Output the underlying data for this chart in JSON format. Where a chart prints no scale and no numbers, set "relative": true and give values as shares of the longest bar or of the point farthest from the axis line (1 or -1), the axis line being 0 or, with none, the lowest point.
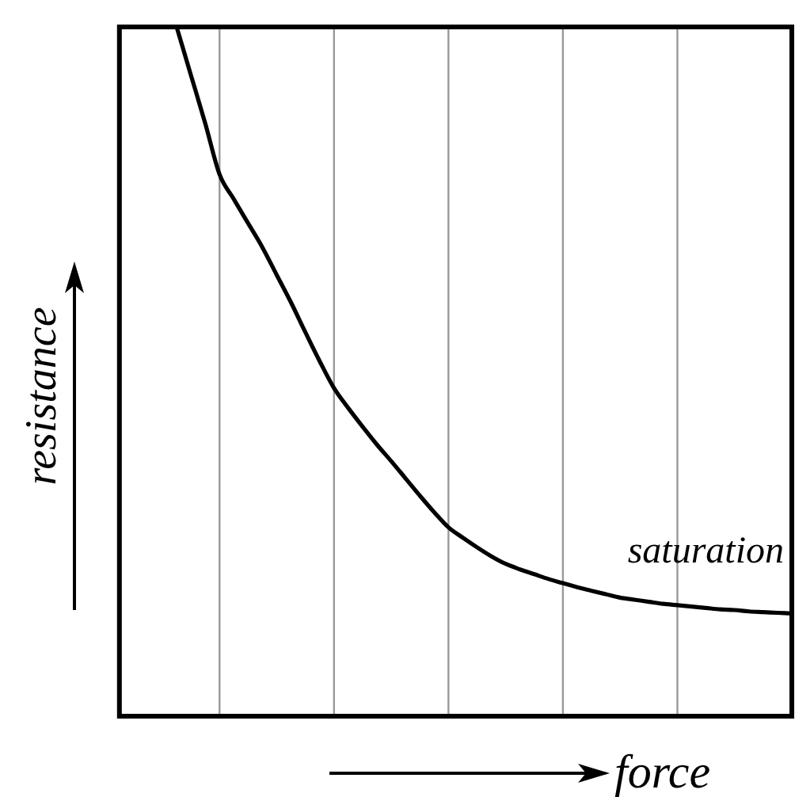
{
  "chart_data": {
    "type": "line",
    "xlabel": "force",
    "ylabel": "resistance",
    "relative": true,
    "grid": "x",
    "annotations": [
      "saturation"
    ],
    "categories": [
      null,
      null,
      null,
      null,
      null,
      null,
      null,
      null,
      null,
      null,
      null,
      null,
      null,
      null,
      null,
      null,
      null,
      null,
      null,
      null,
      null,
      null,
      null,
      null,
      null,
      null,
      null,
      null,
      null,
      null,
      null,
      null,
      null,
      null,
      null,
      null,
      null,
      null,
      null,
      null,
      null,
      null,
      null,
      null,
      null
    ],
    "series": [
      {
        "color": "#000000",
        "values": [
          null,
          1.0,
          0.93,
          0.86,
          0.786,
          0.75,
          0.715,
          0.68,
          0.64,
          0.6,
          0.557,
          0.515,
          0.476,
          0.447,
          0.42,
          0.394,
          0.37,
          0.345,
          0.32,
          0.296,
          0.274,
          0.259,
          0.245,
          0.232,
          0.221,
          0.213,
          0.206,
          0.199,
          0.193,
          0.187,
          0.182,
          0.177,
          0.172,
          0.169,
          0.166,
          0.163,
          0.161,
          0.159,
          0.157,
          0.155,
          0.154,
          0.152,
          0.151,
          0.15,
          0.149
        ]
      }
    ]
  }
}
